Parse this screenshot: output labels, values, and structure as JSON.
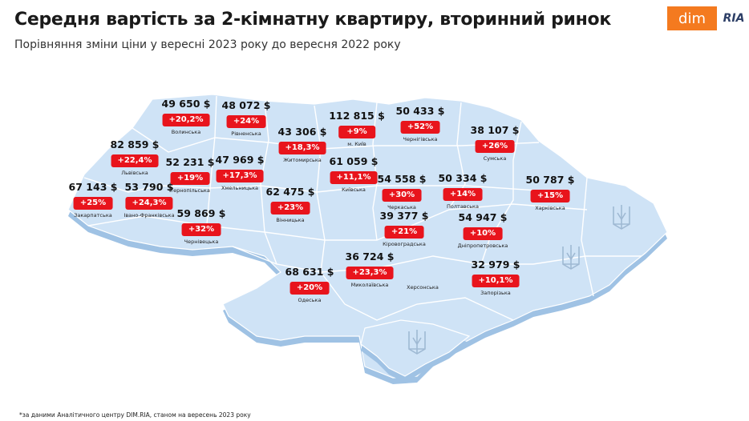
{
  "title": "Середня вартість за 2-кімнатну квартиру, вторинний ринок",
  "subtitle": "Порівняння зміни ціни у вересні 2023 року до вересня 2022 року",
  "footnote": "*за даними Аналітичного центру DIM.RIA, станом на вересень 2023 року",
  "logo": {
    "dim": "dim",
    "ria": "RIA"
  },
  "colors": {
    "badge": "#e8141c",
    "map_fill": "#cfe3f6",
    "map_stroke": "#ffffff",
    "map_shadow": "#9fc2e4"
  },
  "regions": [
    {
      "id": "volynska",
      "name": "Волинська",
      "price": "49 650 $",
      "change": "+20,2%"
    },
    {
      "id": "rivnenska",
      "name": "Рівненська",
      "price": "48 072 $",
      "change": "+24%"
    },
    {
      "id": "zhytomyrska",
      "name": "Житомирська",
      "price": "43 306 $",
      "change": "+18,3%"
    },
    {
      "id": "kyiv",
      "name": "м. Київ",
      "price": "112 815 $",
      "change": "+9%"
    },
    {
      "id": "chernihivska",
      "name": "Чернігівська",
      "price": "50 433 $",
      "change": "+52%"
    },
    {
      "id": "sumska",
      "name": "Сумська",
      "price": "38 107 $",
      "change": "+26%"
    },
    {
      "id": "lvivska",
      "name": "Львівська",
      "price": "82 859 $",
      "change": "+22,4%"
    },
    {
      "id": "ternopilska",
      "name": "Тернопільська",
      "price": "52 231 $",
      "change": "+19%"
    },
    {
      "id": "khmelnytska",
      "name": "Хмельницька",
      "price": "47 969 $",
      "change": "+17,3%"
    },
    {
      "id": "kyivska",
      "name": "Київська",
      "price": "61 059 $",
      "change": "+11,1%"
    },
    {
      "id": "cherkaska",
      "name": "Черкаська",
      "price": "54 558 $",
      "change": "+30%"
    },
    {
      "id": "poltavska",
      "name": "Полтавська",
      "price": "50 334 $",
      "change": "+14%"
    },
    {
      "id": "kharkivska",
      "name": "Харківська",
      "price": "50 787 $",
      "change": "+15%"
    },
    {
      "id": "zakarpatska",
      "name": "Закарпатська",
      "price": "67 143 $",
      "change": "+25%"
    },
    {
      "id": "ivano-frankivska",
      "name": "Івано-Франківська",
      "price": "53 790 $",
      "change": "+24,3%"
    },
    {
      "id": "vinnytska",
      "name": "Вінницька",
      "price": "62 475 $",
      "change": "+23%"
    },
    {
      "id": "chernivetska",
      "name": "Чернівецька",
      "price": "59 869 $",
      "change": "+32%"
    },
    {
      "id": "kirovohradska",
      "name": "Кіровоградська",
      "price": "39 377 $",
      "change": "+21%"
    },
    {
      "id": "dnipropetrovska",
      "name": "Дніпропетровська",
      "price": "54 947 $",
      "change": "+10%"
    },
    {
      "id": "mykolaivska",
      "name": "Миколаївська",
      "price": "36 724 $",
      "change": "+23,3%"
    },
    {
      "id": "odeska",
      "name": "Одеська",
      "price": "68 631 $",
      "change": "+20%"
    },
    {
      "id": "zaporizka",
      "name": "Запорізька",
      "price": "32 979 $",
      "change": "+10,1%"
    },
    {
      "id": "khersonska",
      "name": "Херсонська",
      "price": "",
      "change": ""
    }
  ]
}
